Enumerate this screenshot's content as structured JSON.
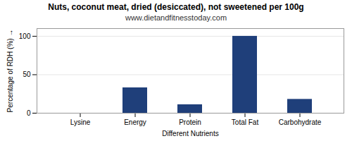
{
  "chart_data": {
    "type": "bar",
    "title": "Nuts, coconut meat, dried (desiccated), not sweetened per 100g",
    "subtitle": "www.dietandfitnesstoday.com",
    "xlabel": "Different Nutrients",
    "ylabel": "Percentage of RDH (%)",
    "categories": [
      "Lysine",
      "Energy",
      "Protein",
      "Total Fat",
      "Carbohydrate"
    ],
    "values": [
      0,
      33,
      11,
      100,
      18
    ],
    "color": "#1F3F7A",
    "ylim": [
      0,
      110
    ],
    "yticks": [
      0,
      50,
      100
    ],
    "grid": true
  }
}
